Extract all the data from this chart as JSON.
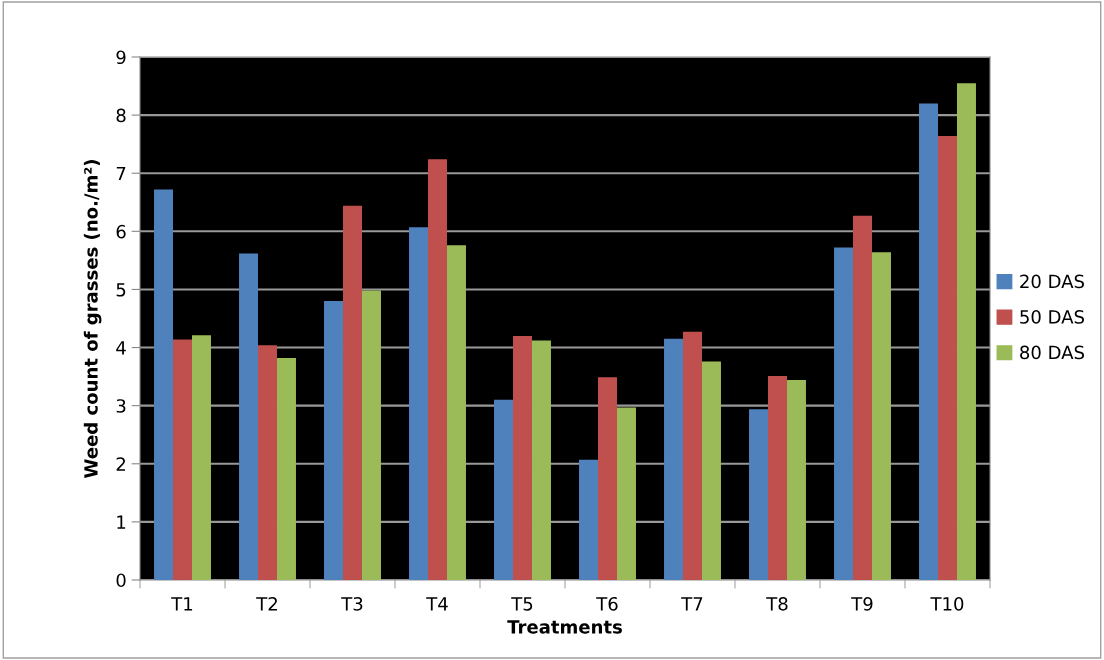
{
  "chart_data": {
    "type": "bar",
    "xlabel": "Treatments",
    "ylabel": "Weed count of grasses (no./m²)",
    "categories": [
      "T1",
      "T2",
      "T3",
      "T4",
      "T5",
      "T6",
      "T7",
      "T8",
      "T9",
      "T10"
    ],
    "series": [
      {
        "name": "20 DAS",
        "color": "#4f81bd",
        "values": [
          6.72,
          5.62,
          4.8,
          6.07,
          3.1,
          2.07,
          4.15,
          2.94,
          5.72,
          8.2
        ]
      },
      {
        "name": "50 DAS",
        "color": "#c0504d",
        "values": [
          4.14,
          4.04,
          6.44,
          7.24,
          4.2,
          3.49,
          4.27,
          3.51,
          6.27,
          7.64
        ]
      },
      {
        "name": "80 DAS",
        "color": "#9bbb59",
        "values": [
          4.21,
          3.82,
          4.98,
          5.76,
          4.12,
          2.97,
          3.76,
          3.44,
          5.64,
          8.55
        ]
      }
    ],
    "ylim": [
      0,
      9
    ],
    "yticks": [
      0,
      1,
      2,
      3,
      4,
      5,
      6,
      7,
      8,
      9
    ],
    "grid": "y",
    "legend": "right"
  }
}
